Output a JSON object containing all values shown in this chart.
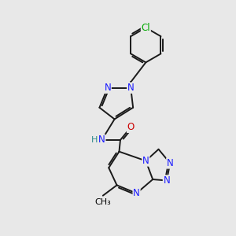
{
  "bg_color": "#e8e8e8",
  "atom_colors": {
    "C": "#000000",
    "N": "#1a1aff",
    "O": "#cc0000",
    "Cl": "#00aa00",
    "H": "#2e8b8b"
  },
  "bond_color": "#1a1a1a",
  "bond_width": 1.4,
  "font_size_atom": 8.5,
  "font_size_small": 8.0,
  "title": ""
}
